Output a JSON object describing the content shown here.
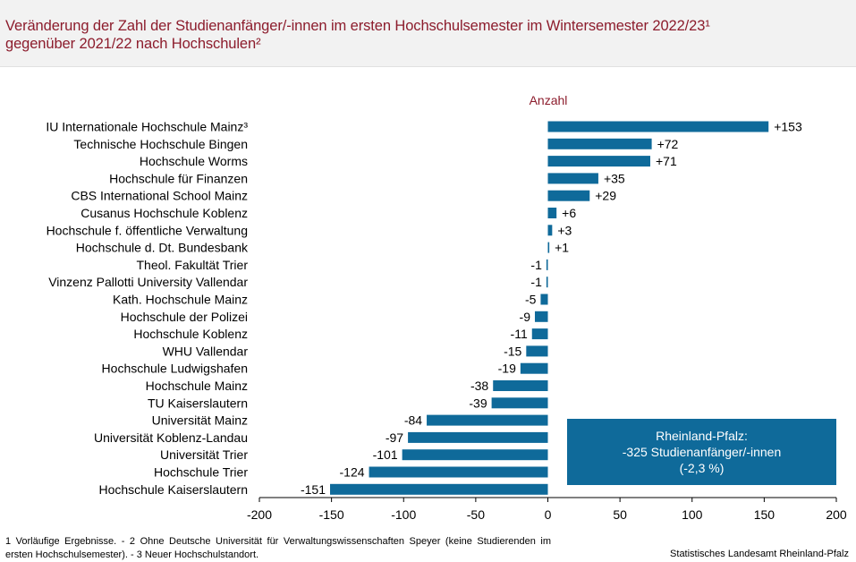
{
  "header": {
    "title_line1": "Veränderung der Zahl der Studienanfänger/-innen im ersten Hochschulsemester im Wintersemester 2022/23¹",
    "title_line2": "gegenüber 2021/22 nach Hochschulen²"
  },
  "chart_data": {
    "type": "bar",
    "orientation": "horizontal",
    "title": "Veränderung der Zahl der Studienanfänger/-innen im ersten Hochschulsemester im Wintersemester 2022/23¹ gegenüber 2021/22 nach Hochschulen²",
    "ylabel": "Anzahl",
    "xlim": [
      -200,
      200
    ],
    "xticks": [
      -200,
      -150,
      -100,
      -50,
      0,
      50,
      100,
      150,
      200
    ],
    "grid": false,
    "bar_color": "#0f6a9a",
    "categories": [
      "IU Internationale Hochschule Mainz³",
      "Technische Hochschule Bingen",
      "Hochschule Worms",
      "Hochschule für Finanzen",
      "CBS International School Mainz",
      "Cusanus Hochschule Koblenz",
      "Hochschule f. öffentliche Verwaltung",
      "Hochschule d. Dt. Bundesbank",
      "Theol. Fakultät Trier",
      "Vinzenz Pallotti University Vallendar",
      "Kath. Hochschule Mainz",
      "Hochschule der Polizei",
      "Hochschule Koblenz",
      "WHU Vallendar",
      "Hochschule Ludwigshafen",
      "Hochschule Mainz",
      "TU Kaiserslautern",
      "Universität Mainz",
      "Universität Koblenz-Landau",
      "Universität Trier",
      "Hochschule Trier",
      "Hochschule Kaiserslautern"
    ],
    "values": [
      153,
      72,
      71,
      35,
      29,
      6,
      3,
      1,
      -1,
      -1,
      -5,
      -9,
      -11,
      -15,
      -19,
      -38,
      -39,
      -84,
      -97,
      -101,
      -124,
      -151
    ],
    "value_labels": [
      "+153",
      "+72",
      "+71",
      "+35",
      "+29",
      "+6",
      "+3",
      "+1",
      "-1",
      "-1",
      "-5",
      "-9",
      "-11",
      "-15",
      "-19",
      "-38",
      "-39",
      "-84",
      "-97",
      "-101",
      "-124",
      "-151"
    ]
  },
  "callout": {
    "line1": "Rheinland-Pfalz:",
    "line2": "-325 Studienanfänger/-innen",
    "line3": "(-2,3 %)"
  },
  "footer": {
    "footnote": "1 Vorläufige Ergebnisse. - 2 Ohne Deutsche Universität für Verwaltungswissenschaften Speyer (keine Studierenden im ersten Hochschulsemester). - 3 Neuer Hochschulstandort.",
    "source": "Statistisches Landesamt Rheinland-Pfalz"
  }
}
